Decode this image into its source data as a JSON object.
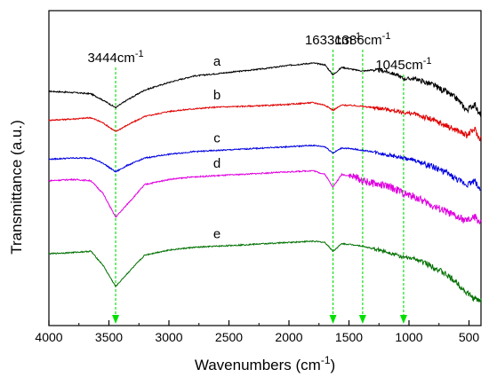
{
  "chart_data": {
    "type": "line",
    "title": "",
    "xlabel": "Wavenumbers (cm",
    "xlabel_sup": "-1",
    "xlabel_suffix": ")",
    "ylabel": "Transmittance (a.u.)",
    "xlim": [
      4000,
      400
    ],
    "x_reversed": true,
    "xticks": [
      4000,
      3500,
      3000,
      2500,
      2000,
      1500,
      1000,
      500
    ],
    "grid": false,
    "y_tick_labels": false,
    "annotations": [
      {
        "x": 3444,
        "text": "3444cm",
        "sup": "-1",
        "line_color": "#00e000"
      },
      {
        "x": 1633,
        "text": "1633cm",
        "sup": "-1",
        "line_color": "#00e000"
      },
      {
        "x": 1386,
        "text": "1386cm",
        "sup": "-1",
        "line_color": "#00e000"
      },
      {
        "x": 1045,
        "text": "1045cm",
        "sup": "-1",
        "line_color": "#00e000"
      }
    ],
    "series": [
      {
        "name": "a",
        "color": "#000000",
        "label_x": 2600,
        "x": [
          4000,
          3800,
          3650,
          3550,
          3444,
          3350,
          3200,
          3000,
          2800,
          2600,
          2400,
          2200,
          2000,
          1800,
          1700,
          1633,
          1560,
          1450,
          1386,
          1300,
          1200,
          1100,
          1045,
          950,
          800,
          700,
          600,
          520,
          450,
          420
        ],
        "y": [
          38.0,
          37.5,
          37.0,
          34.5,
          31.5,
          34.5,
          38.5,
          41.5,
          44.0,
          45.0,
          46.0,
          47.0,
          48.3,
          49.2,
          48.5,
          44.5,
          47.5,
          46.5,
          46.0,
          46.5,
          46.0,
          44.5,
          43.0,
          43.0,
          40.5,
          38.0,
          35.0,
          30.5,
          33.0,
          29.0
        ]
      },
      {
        "name": "b",
        "color": "#e00000",
        "label_x": 2600,
        "x": [
          4000,
          3800,
          3650,
          3550,
          3444,
          3350,
          3200,
          3000,
          2800,
          2600,
          2400,
          2200,
          2000,
          1800,
          1700,
          1633,
          1560,
          1450,
          1386,
          1300,
          1200,
          1100,
          1045,
          950,
          800,
          700,
          600,
          520,
          450,
          420
        ],
        "y": [
          26.5,
          27.0,
          27.5,
          25.5,
          22.0,
          24.5,
          28.0,
          30.0,
          31.0,
          31.7,
          32.0,
          32.3,
          32.8,
          33.5,
          32.5,
          30.5,
          32.5,
          32.3,
          32.0,
          31.5,
          31.0,
          30.0,
          29.5,
          29.0,
          26.5,
          24.5,
          22.5,
          20.5,
          23.0,
          19.5
        ]
      },
      {
        "name": "c",
        "color": "#0000e0",
        "label_x": 2600,
        "x": [
          4000,
          3800,
          3650,
          3550,
          3444,
          3350,
          3200,
          3000,
          2800,
          2600,
          2400,
          2200,
          2000,
          1800,
          1700,
          1633,
          1560,
          1450,
          1386,
          1300,
          1200,
          1100,
          1045,
          950,
          800,
          700,
          600,
          520,
          450,
          420
        ],
        "y": [
          11.0,
          11.5,
          11.5,
          9.5,
          6.0,
          8.5,
          11.5,
          13.0,
          14.0,
          14.5,
          15.0,
          15.5,
          16.0,
          16.5,
          16.0,
          13.5,
          15.5,
          15.0,
          14.5,
          14.0,
          13.0,
          12.0,
          11.5,
          10.5,
          8.0,
          6.0,
          3.0,
          1.0,
          2.5,
          -0.5
        ]
      },
      {
        "name": "d",
        "color": "#e000e0",
        "label_x": 2600,
        "x": [
          4000,
          3800,
          3650,
          3550,
          3444,
          3350,
          3200,
          3000,
          2800,
          2600,
          2400,
          2200,
          2000,
          1800,
          1700,
          1633,
          1560,
          1450,
          1386,
          1300,
          1200,
          1100,
          1045,
          950,
          800,
          700,
          600,
          520,
          450,
          420
        ],
        "y": [
          2.5,
          3.0,
          2.5,
          -2.5,
          -12.0,
          -7.0,
          1.0,
          3.0,
          4.0,
          4.5,
          5.0,
          5.5,
          6.0,
          6.5,
          5.0,
          0.0,
          5.0,
          4.0,
          2.5,
          1.5,
          0.5,
          -1.0,
          -2.5,
          -4.0,
          -7.5,
          -9.5,
          -12.0,
          -13.5,
          -12.0,
          -13.5
        ]
      },
      {
        "name": "e",
        "color": "#007000",
        "label_x": 2600,
        "x": [
          4000,
          3800,
          3650,
          3550,
          3444,
          3350,
          3200,
          3000,
          2800,
          2600,
          2400,
          2200,
          2000,
          1800,
          1700,
          1633,
          1560,
          1450,
          1386,
          1300,
          1200,
          1100,
          1045,
          950,
          800,
          700,
          600,
          520,
          450,
          420
        ],
        "y": [
          -26.5,
          -26.0,
          -25.5,
          -31.0,
          -39.5,
          -34.5,
          -27.0,
          -25.0,
          -24.0,
          -23.5,
          -23.0,
          -22.5,
          -22.0,
          -21.5,
          -22.0,
          -25.5,
          -22.5,
          -23.0,
          -23.5,
          -24.5,
          -25.5,
          -27.0,
          -28.0,
          -28.5,
          -31.5,
          -34.5,
          -38.0,
          -42.0,
          -44.5,
          -45.0
        ]
      }
    ],
    "ylim": [
      -55,
      70
    ]
  }
}
